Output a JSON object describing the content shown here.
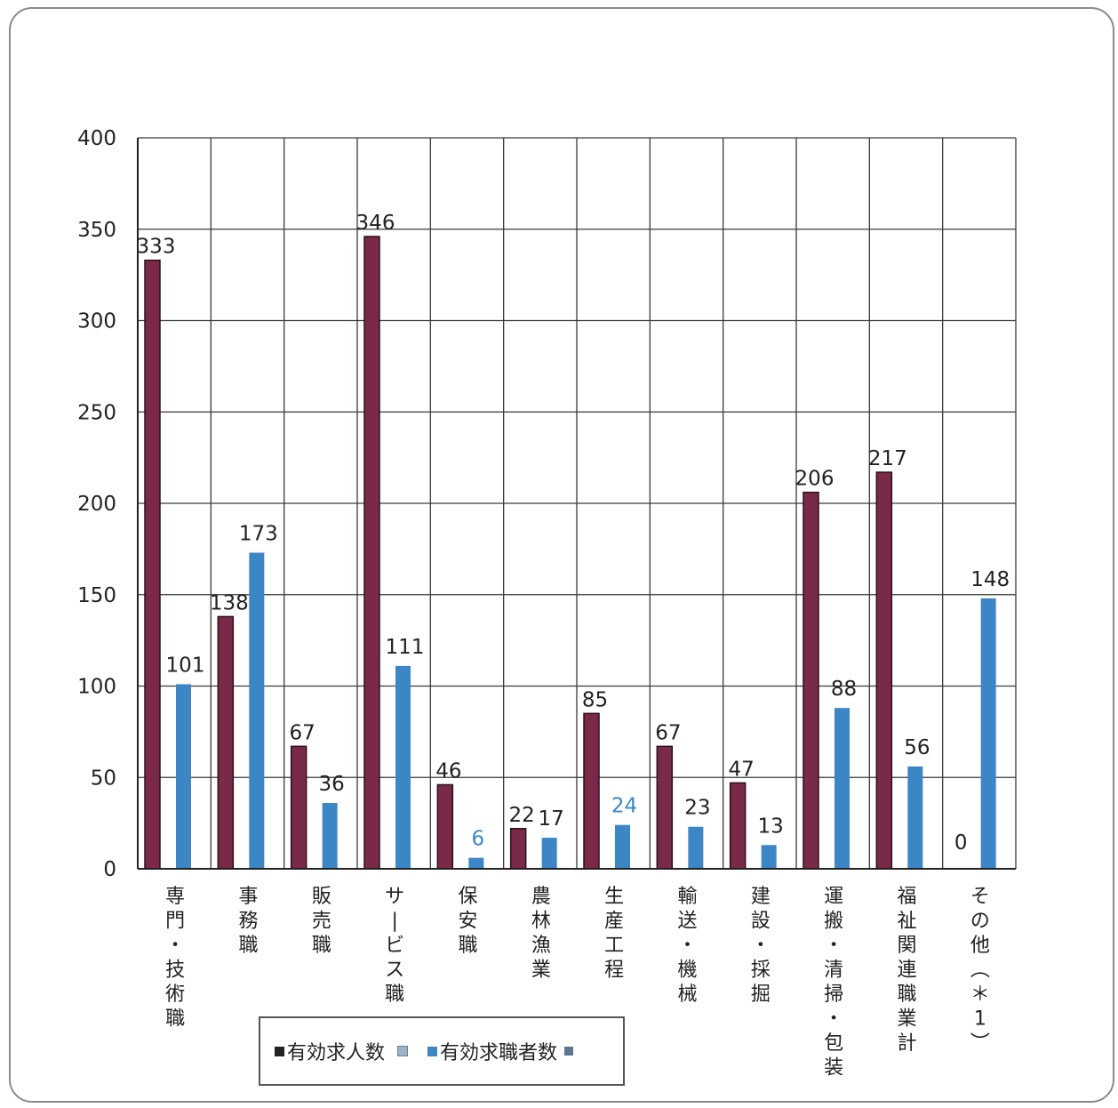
{
  "chart_data": {
    "type": "bar",
    "categories": [
      "専門・技術職",
      "事務職",
      "販売職",
      "サービス職",
      "保安職",
      "農林漁業",
      "生産工程",
      "輸送・機械",
      "建設・採掘",
      "運搬・清掃・包装",
      "福祉関連職業計",
      "その他(*1)"
    ],
    "series": [
      {
        "name": "有効求人数",
        "values": [
          333,
          138,
          67,
          346,
          46,
          22,
          85,
          67,
          47,
          206,
          217,
          0
        ],
        "color": "#7a2a48"
      },
      {
        "name": "有効求職者数",
        "values": [
          101,
          173,
          36,
          111,
          6,
          17,
          24,
          23,
          13,
          88,
          56,
          148
        ],
        "color": "#3d86c6"
      }
    ],
    "ylim": [
      0,
      400
    ],
    "yticks": [
      "0",
      "50",
      "100",
      "150",
      "200",
      "250",
      "300",
      "350",
      "400"
    ],
    "grid": true,
    "legend_position": "bottom-center",
    "title": "",
    "xlabel": "",
    "ylabel": ""
  }
}
